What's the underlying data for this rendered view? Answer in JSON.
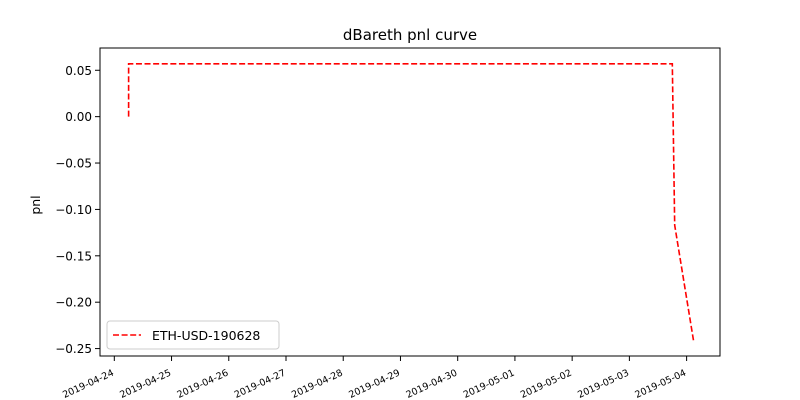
{
  "chart_data": {
    "type": "line",
    "title": "dBareth pnl curve",
    "xlabel": "",
    "ylabel": "pnl",
    "x_tick_labels": [
      "2019-04-24",
      "2019-04-25",
      "2019-04-26",
      "2019-04-27",
      "2019-04-28",
      "2019-04-29",
      "2019-04-30",
      "2019-05-01",
      "2019-05-02",
      "2019-05-03",
      "2019-05-04"
    ],
    "y_tick_labels": [
      "0.05",
      "0.00",
      "−0.05",
      "−0.10",
      "−0.15",
      "−0.20",
      "−0.25"
    ],
    "y_ticks": [
      0.05,
      0.0,
      -0.05,
      -0.1,
      -0.15,
      -0.2,
      -0.25
    ],
    "xlim": [
      "2019-04-23 18:00",
      "2019-05-04 14:00"
    ],
    "ylim": [
      -0.258,
      0.074
    ],
    "grid": false,
    "legend_position": "lower-left",
    "series": [
      {
        "name": "ETH-USD-190628",
        "color": "#ff0000",
        "line_style": "dashed",
        "points": [
          {
            "x": "2019-04-24 06:00",
            "y": 0.0
          },
          {
            "x": "2019-04-24 06:00",
            "y": 0.057
          },
          {
            "x": "2019-05-03 18:00",
            "y": 0.057
          },
          {
            "x": "2019-05-03 19:00",
            "y": -0.117
          },
          {
            "x": "2019-05-04 03:00",
            "y": -0.243
          }
        ]
      }
    ]
  }
}
